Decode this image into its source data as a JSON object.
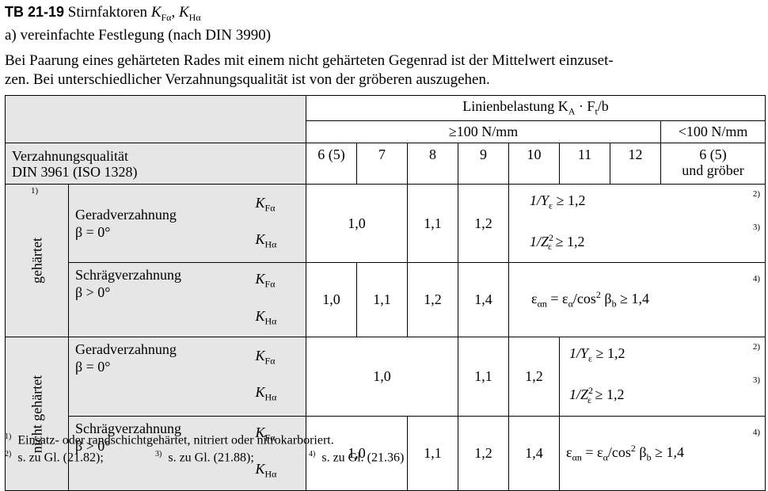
{
  "header": {
    "table_id": "TB 21-19",
    "title_text": "Stirnfaktoren",
    "title_sym1": "K",
    "title_sub1": "Fα",
    "title_sep": ", ",
    "title_sym2": "K",
    "title_sub2": "Hα",
    "subtitle": "a)  vereinfachte Festlegung (nach DIN 3990)",
    "note_line1": "Bei Paarung eines gehärteten Rades mit einem nicht gehärteten Gegenrad ist der Mittelwert einzuset-",
    "note_line2": "zen. Bei unterschiedlicher Verzahnungsqualität ist von der gröberen auszugehen."
  },
  "table": {
    "load_header": "Linienbelastung K",
    "load_header_sub": "A",
    "load_header_rest": " · F",
    "load_header_sub2": "t",
    "load_header_end": "/b",
    "ge100": "≥100 N/mm",
    "lt100": "<100 N/mm",
    "quality_label_1": "Verzahnungsqualität",
    "quality_label_2": "DIN 3961 (ISO 1328)",
    "qualities": [
      "6 (5)",
      "7",
      "8",
      "9",
      "10",
      "11",
      "12"
    ],
    "quality_last_1": "6 (5)",
    "quality_last_2": "und gröber",
    "group_gehaertet": "gehärtet",
    "group_nicht": "nicht gehärtet",
    "fn1_mark": "1)",
    "gerad_1": "Geradverzahnung",
    "gerad_2": "β = 0°",
    "schraeg_1": "Schrägverzahnung",
    "schraeg_2": "β > 0°",
    "kf": "K",
    "kf_sub": "Fα",
    "kh": "K",
    "kh_sub": "Hα",
    "r1_val_a": "1,0",
    "r1_val_b": "1,1",
    "r1_val_c": "1,2",
    "r1_formula_top": "1/Y",
    "r1_formula_top_sub": "ε",
    "r1_formula_top_end": " ≥ 1,2",
    "r1_formula_bot": "1/Z",
    "r1_formula_bot_sup": "2",
    "r1_formula_bot_sub": "ε",
    "r1_formula_bot_end": " ≥ 1,2",
    "fn2": "2)",
    "fn3": "3)",
    "fn4": "4)",
    "r2_vals": [
      "1,0",
      "1,1",
      "1,2",
      "1,4"
    ],
    "r2_formula": "ε",
    "r2_formula_sub": "αn",
    "r2_formula_mid": " = ε",
    "r2_formula_sub2": "α",
    "r2_formula_mid2": "/cos",
    "r2_formula_sup": "2",
    "r2_formula_beta": " β",
    "r2_formula_beta_sub": "b",
    "r2_formula_end": " ≥ 1,4",
    "r3_val_a": "1,0",
    "r3_val_b": "1,1",
    "r3_val_c": "1,2",
    "r4_vals": [
      "1,0",
      "1,1",
      "1,2",
      "1,4"
    ]
  },
  "footnotes": {
    "f1_mark": "1)",
    "f1_text": "Einsatz- oder randschichtgehärtet, nitriert oder nitrokarboriert.",
    "f2_mark": "2)",
    "f2_text": "s. zu Gl. (21.82);",
    "f3_mark": "3)",
    "f3_text": "s. zu Gl. (21.88);",
    "f4_mark": "4)",
    "f4_text": "s. zu Gl. (21.36)"
  }
}
